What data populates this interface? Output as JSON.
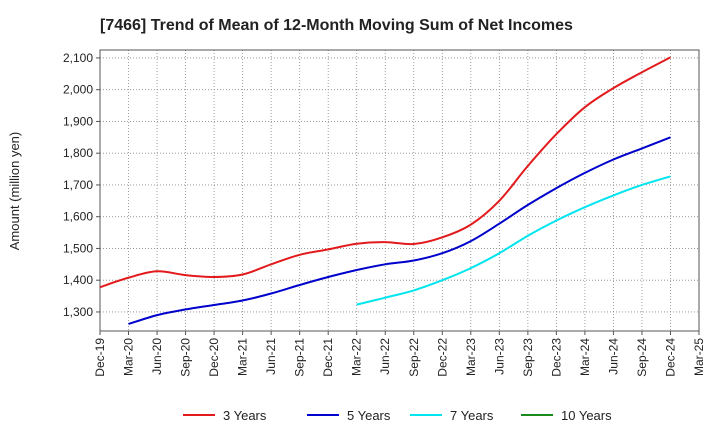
{
  "chart_data": {
    "type": "line",
    "title": "[7466]  Trend of Mean of 12-Month Moving Sum of Net Incomes",
    "xlabel": "",
    "ylabel": "Amount (million yen)",
    "categories": [
      "Dec-19",
      "Mar-20",
      "Jun-20",
      "Sep-20",
      "Dec-20",
      "Mar-21",
      "Jun-21",
      "Sep-21",
      "Dec-21",
      "Mar-22",
      "Jun-22",
      "Sep-22",
      "Dec-22",
      "Mar-23",
      "Jun-23",
      "Sep-23",
      "Dec-23",
      "Mar-24",
      "Jun-24",
      "Sep-24",
      "Dec-24",
      "Mar-25"
    ],
    "yticks": [
      "1,300",
      "1,400",
      "1,500",
      "1,600",
      "1,700",
      "1,800",
      "1,900",
      "2,000",
      "2,100"
    ],
    "ylim": [
      1240,
      2125
    ],
    "grid": true,
    "legend_position": "bottom",
    "series": [
      {
        "name": "3 Years",
        "color": "#e31a1c",
        "values": [
          1378,
          1408,
          1428,
          1416,
          1410,
          1418,
          1450,
          1480,
          1497,
          1515,
          1520,
          1514,
          1535,
          1575,
          1650,
          1760,
          1860,
          1945,
          2005,
          2055,
          2102,
          null
        ]
      },
      {
        "name": "5 Years",
        "color": "#0000cc",
        "values": [
          null,
          1262,
          1290,
          1308,
          1322,
          1336,
          1358,
          1385,
          1410,
          1432,
          1450,
          1462,
          1485,
          1523,
          1578,
          1637,
          1690,
          1738,
          1780,
          1815,
          1850,
          null
        ]
      },
      {
        "name": "7 Years",
        "color": "#00e5ee",
        "values": [
          null,
          null,
          null,
          null,
          null,
          null,
          null,
          null,
          null,
          1323,
          1345,
          1368,
          1400,
          1438,
          1485,
          1540,
          1588,
          1630,
          1667,
          1700,
          1727,
          null
        ]
      },
      {
        "name": "10 Years",
        "color": "#1a8a1a",
        "values": [
          null,
          null,
          null,
          null,
          null,
          null,
          null,
          null,
          null,
          null,
          null,
          null,
          null,
          null,
          null,
          null,
          null,
          null,
          null,
          null,
          null,
          null
        ]
      }
    ]
  }
}
